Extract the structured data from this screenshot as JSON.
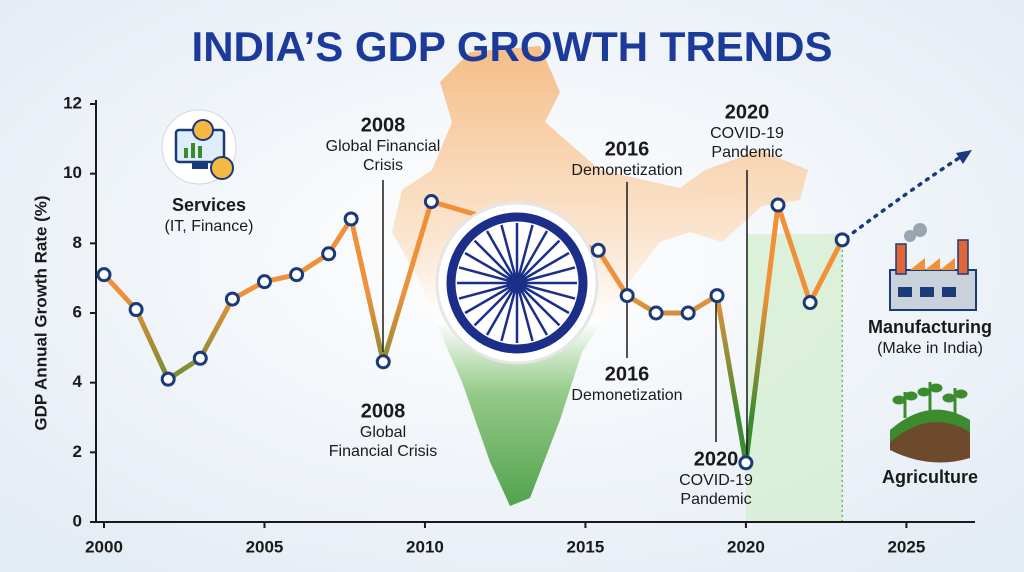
{
  "chart_data": {
    "type": "line",
    "title": "INDIA’S GDP GROWTH TRENDS",
    "y_label": "GDP Annual Growth Rate (%)",
    "x": [
      2000,
      2001,
      2002,
      2003,
      2004,
      2005,
      2006,
      2007,
      2007.7,
      2008.7,
      2010.2,
      2015.4,
      2016.3,
      2017.2,
      2018.2,
      2019.1,
      2020,
      2021,
      2022,
      2023
    ],
    "series": [
      {
        "color": "#f0913a",
        "low_color": "#3d8b2f",
        "marker_color": "#1b3a7a",
        "values": [
          7.1,
          6.1,
          4.1,
          4.7,
          6.4,
          6.9,
          7.1,
          7.7,
          8.7,
          4.6,
          9.2,
          7.8,
          6.5,
          6.0,
          6.0,
          6.5,
          1.7,
          9.1,
          6.3,
          8.1
        ]
      }
    ],
    "xlim": [
      2000,
      2027.2
    ],
    "xticks": [
      2000,
      2005,
      2010,
      2015,
      2020,
      2025
    ],
    "ylim": [
      0,
      12
    ],
    "yticks": [
      0,
      2,
      4,
      6,
      8,
      10,
      12
    ],
    "highlight_range": [
      2020,
      2023
    ],
    "highlight_color": "#d6efd2",
    "annotations": [
      {
        "year": "2008",
        "lines": [
          "Global Financial",
          "Crisis"
        ]
      },
      {
        "year": "2008",
        "lines": [
          "Global",
          "Financial Crisis"
        ]
      },
      {
        "year": "2016",
        "lines": [
          "Demonetization"
        ]
      },
      {
        "year": "2016",
        "lines": [
          "Demonetization"
        ]
      },
      {
        "year": "2020",
        "lines": [
          "COVID-19",
          "Pandemic"
        ]
      },
      {
        "year": "2020",
        "lines": [
          "COVID-19",
          "Pandemic"
        ]
      }
    ],
    "sectors": [
      {
        "name": "Services",
        "detail": "(IT, Finance)"
      },
      {
        "name": "Manufacturing",
        "detail": "(Make in India)"
      },
      {
        "name": "Agriculture"
      }
    ]
  }
}
